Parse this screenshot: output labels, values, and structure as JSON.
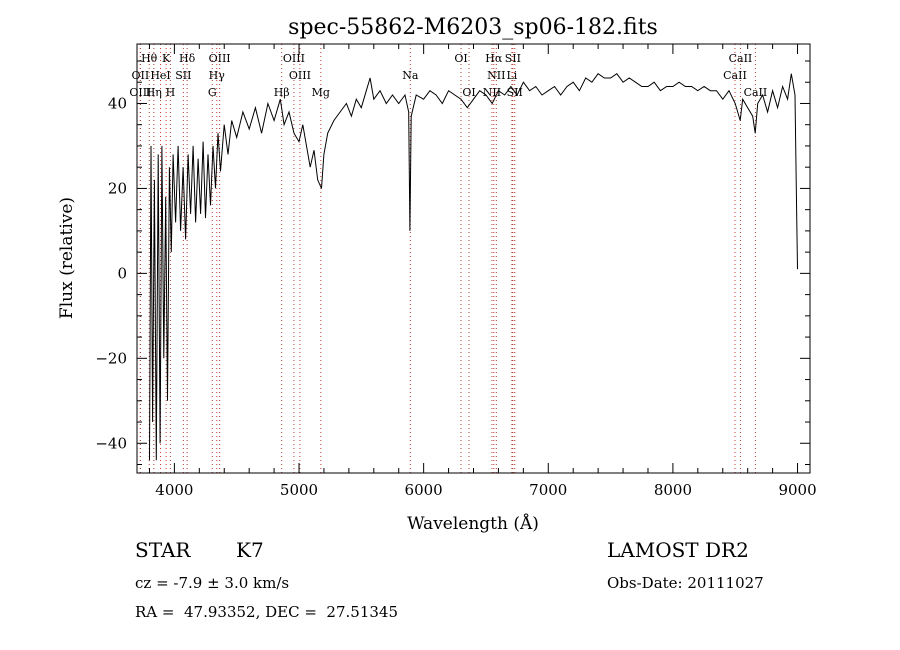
{
  "chart_data": {
    "type": "line",
    "title": "spec-55862-M6203_sp06-182.fits",
    "xlabel": "Wavelength (Å)",
    "ylabel": "Flux (relative)",
    "xlim": [
      3700,
      9100
    ],
    "ylim": [
      -47,
      54
    ],
    "xticks": [
      4000,
      5000,
      6000,
      7000,
      8000,
      9000
    ],
    "yticks": [
      -40,
      -20,
      0,
      20,
      40
    ],
    "grid": false,
    "series": [
      {
        "values": [
          [
            3800,
            -44
          ],
          [
            3812,
            30
          ],
          [
            3825,
            -35
          ],
          [
            3840,
            22
          ],
          [
            3855,
            -44
          ],
          [
            3870,
            28
          ],
          [
            3885,
            -40
          ],
          [
            3900,
            30
          ],
          [
            3915,
            -20
          ],
          [
            3930,
            18
          ],
          [
            3945,
            -30
          ],
          [
            3960,
            25
          ],
          [
            3975,
            5
          ],
          [
            3990,
            28
          ],
          [
            4010,
            12
          ],
          [
            4030,
            30
          ],
          [
            4050,
            10
          ],
          [
            4070,
            25
          ],
          [
            4090,
            8
          ],
          [
            4110,
            28
          ],
          [
            4130,
            14
          ],
          [
            4150,
            30
          ],
          [
            4170,
            12
          ],
          [
            4190,
            27
          ],
          [
            4210,
            14
          ],
          [
            4230,
            31
          ],
          [
            4250,
            13
          ],
          [
            4270,
            28
          ],
          [
            4290,
            16
          ],
          [
            4310,
            30
          ],
          [
            4330,
            20
          ],
          [
            4350,
            33
          ],
          [
            4370,
            24
          ],
          [
            4400,
            35
          ],
          [
            4430,
            28
          ],
          [
            4460,
            36
          ],
          [
            4500,
            32
          ],
          [
            4550,
            38
          ],
          [
            4600,
            34
          ],
          [
            4650,
            39
          ],
          [
            4700,
            33
          ],
          [
            4750,
            40
          ],
          [
            4800,
            36
          ],
          [
            4850,
            41
          ],
          [
            4880,
            35
          ],
          [
            4920,
            38
          ],
          [
            4960,
            33
          ],
          [
            5000,
            31
          ],
          [
            5030,
            35
          ],
          [
            5060,
            30
          ],
          [
            5090,
            25
          ],
          [
            5120,
            29
          ],
          [
            5150,
            22
          ],
          [
            5180,
            20
          ],
          [
            5200,
            28
          ],
          [
            5230,
            33
          ],
          [
            5280,
            36
          ],
          [
            5330,
            38
          ],
          [
            5380,
            40
          ],
          [
            5420,
            37
          ],
          [
            5460,
            41
          ],
          [
            5500,
            39
          ],
          [
            5540,
            43
          ],
          [
            5570,
            46
          ],
          [
            5600,
            41
          ],
          [
            5650,
            43
          ],
          [
            5700,
            40
          ],
          [
            5750,
            42
          ],
          [
            5800,
            40
          ],
          [
            5850,
            42
          ],
          [
            5880,
            38
          ],
          [
            5890,
            10
          ],
          [
            5900,
            37
          ],
          [
            5940,
            42
          ],
          [
            6000,
            41
          ],
          [
            6050,
            43
          ],
          [
            6100,
            42
          ],
          [
            6150,
            40
          ],
          [
            6200,
            43
          ],
          [
            6250,
            42
          ],
          [
            6300,
            41
          ],
          [
            6350,
            39
          ],
          [
            6400,
            41
          ],
          [
            6450,
            43
          ],
          [
            6500,
            42
          ],
          [
            6550,
            40
          ],
          [
            6600,
            43
          ],
          [
            6650,
            42
          ],
          [
            6700,
            44
          ],
          [
            6750,
            42
          ],
          [
            6800,
            45
          ],
          [
            6850,
            43
          ],
          [
            6900,
            44
          ],
          [
            6950,
            42
          ],
          [
            7000,
            43
          ],
          [
            7050,
            44
          ],
          [
            7100,
            42
          ],
          [
            7150,
            44
          ],
          [
            7200,
            45
          ],
          [
            7250,
            43
          ],
          [
            7300,
            46
          ],
          [
            7350,
            45
          ],
          [
            7400,
            47
          ],
          [
            7450,
            46
          ],
          [
            7500,
            46
          ],
          [
            7550,
            47
          ],
          [
            7600,
            45
          ],
          [
            7650,
            46
          ],
          [
            7700,
            45
          ],
          [
            7750,
            44
          ],
          [
            7800,
            44
          ],
          [
            7850,
            45
          ],
          [
            7900,
            43
          ],
          [
            7950,
            44
          ],
          [
            8000,
            44
          ],
          [
            8050,
            45
          ],
          [
            8100,
            44
          ],
          [
            8150,
            44
          ],
          [
            8200,
            43
          ],
          [
            8250,
            44
          ],
          [
            8300,
            43
          ],
          [
            8350,
            43
          ],
          [
            8400,
            41
          ],
          [
            8450,
            43
          ],
          [
            8500,
            40
          ],
          [
            8540,
            36
          ],
          [
            8560,
            41
          ],
          [
            8600,
            39
          ],
          [
            8640,
            37
          ],
          [
            8660,
            33
          ],
          [
            8680,
            40
          ],
          [
            8720,
            42
          ],
          [
            8760,
            38
          ],
          [
            8800,
            43
          ],
          [
            8840,
            39
          ],
          [
            8880,
            44
          ],
          [
            8920,
            41
          ],
          [
            8950,
            47
          ],
          [
            8980,
            42
          ],
          [
            8990,
            20
          ],
          [
            9000,
            1
          ]
        ]
      }
    ],
    "line_markers": [
      {
        "label": "Hθ",
        "x": 3798,
        "row": 0
      },
      {
        "label": "K",
        "x": 3934,
        "row": 0
      },
      {
        "label": "Hδ",
        "x": 4102,
        "row": 0
      },
      {
        "label": "OIII",
        "x": 4363,
        "row": 0
      },
      {
        "label": "OIII",
        "x": 4959,
        "row": 0
      },
      {
        "label": "OI",
        "x": 6300,
        "row": 0
      },
      {
        "label": "Hα",
        "x": 6563,
        "row": 0
      },
      {
        "label": "SII",
        "x": 6716,
        "row": 0
      },
      {
        "label": "CaII",
        "x": 8542,
        "row": 0
      },
      {
        "label": "OII",
        "x": 3727,
        "row": 1
      },
      {
        "label": "HeI",
        "x": 3889,
        "row": 1
      },
      {
        "label": "SII",
        "x": 4072,
        "row": 1
      },
      {
        "label": "Hγ",
        "x": 4340,
        "row": 1
      },
      {
        "label": "OIII",
        "x": 5007,
        "row": 1
      },
      {
        "label": "Na",
        "x": 5893,
        "row": 1
      },
      {
        "label": "NII",
        "x": 6583,
        "row": 1
      },
      {
        "label": "Li",
        "x": 6708,
        "row": 1
      },
      {
        "label": "CaII",
        "x": 8498,
        "row": 1
      },
      {
        "label": "OIII",
        "x": 3727,
        "row": 2
      },
      {
        "label": "Hη",
        "x": 3835,
        "row": 2
      },
      {
        "label": "H",
        "x": 3968,
        "row": 2
      },
      {
        "label": "G",
        "x": 4304,
        "row": 2
      },
      {
        "label": "Hβ",
        "x": 4861,
        "row": 2
      },
      {
        "label": "Mg",
        "x": 5175,
        "row": 2
      },
      {
        "label": "OI",
        "x": 6364,
        "row": 2
      },
      {
        "label": "NII",
        "x": 6548,
        "row": 2
      },
      {
        "label": "SII",
        "x": 6731,
        "row": 2
      },
      {
        "label": "CaII",
        "x": 8662,
        "row": 2
      }
    ]
  },
  "info": {
    "object_class": "STAR",
    "subclass": "K7",
    "survey": "LAMOST DR2",
    "redshift": "cz = -7.9 ± 3.0 km/s",
    "obs_date": "Obs-Date: 20111027",
    "coords": "RA =  47.93352, DEC =  27.51345"
  }
}
